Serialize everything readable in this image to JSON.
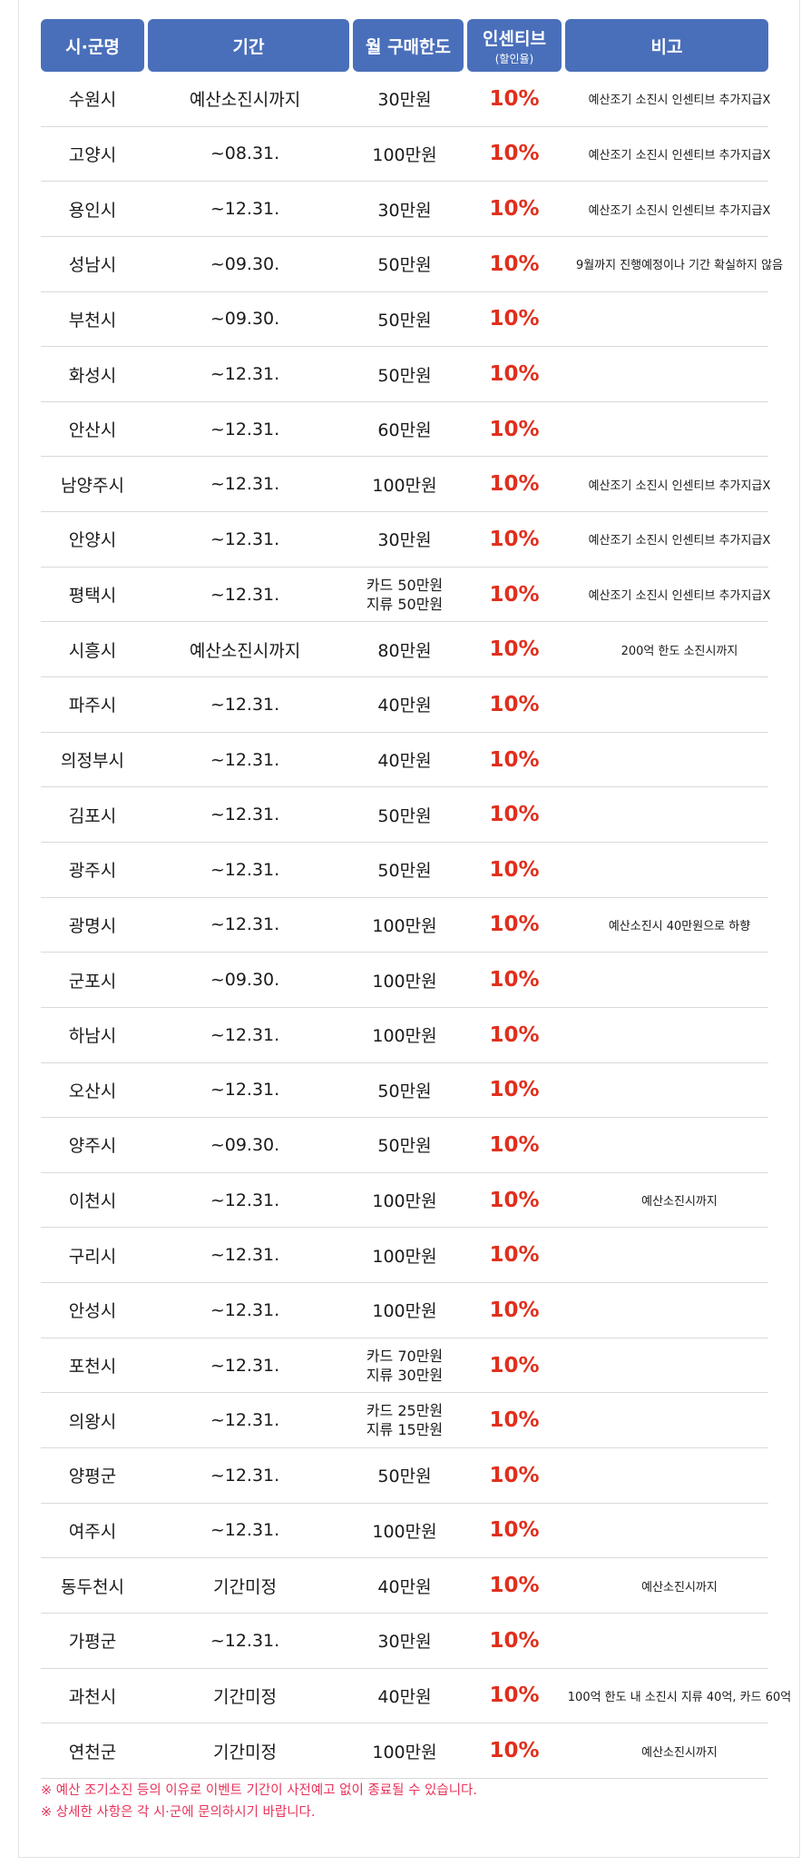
{
  "headers": {
    "city": "시·군명",
    "period": "기간",
    "limit": "월 구매한도",
    "incentive": "인센티브",
    "incentive_sub": "(할인율)",
    "note": "비고"
  },
  "colors": {
    "header_bg": "#4a6fba",
    "incentive_text": "#e0301e",
    "footnote_text": "#e8335a"
  },
  "rows": [
    {
      "city": "수원시",
      "period": "예산소진시까지",
      "limit": [
        "30만원"
      ],
      "incentive": "10%",
      "note": "예산조기 소진시 인센티브 추가지급X"
    },
    {
      "city": "고양시",
      "period": "~08.31.",
      "limit": [
        "100만원"
      ],
      "incentive": "10%",
      "note": "예산조기 소진시 인센티브 추가지급X"
    },
    {
      "city": "용인시",
      "period": "~12.31.",
      "limit": [
        "30만원"
      ],
      "incentive": "10%",
      "note": "예산조기 소진시 인센티브 추가지급X"
    },
    {
      "city": "성남시",
      "period": "~09.30.",
      "limit": [
        "50만원"
      ],
      "incentive": "10%",
      "note": "9월까지 진행예정이나 기간 확실하지 않음"
    },
    {
      "city": "부천시",
      "period": "~09.30.",
      "limit": [
        "50만원"
      ],
      "incentive": "10%",
      "note": ""
    },
    {
      "city": "화성시",
      "period": "~12.31.",
      "limit": [
        "50만원"
      ],
      "incentive": "10%",
      "note": ""
    },
    {
      "city": "안산시",
      "period": "~12.31.",
      "limit": [
        "60만원"
      ],
      "incentive": "10%",
      "note": ""
    },
    {
      "city": "남양주시",
      "period": "~12.31.",
      "limit": [
        "100만원"
      ],
      "incentive": "10%",
      "note": "예산조기 소진시 인센티브 추가지급X"
    },
    {
      "city": "안양시",
      "period": "~12.31.",
      "limit": [
        "30만원"
      ],
      "incentive": "10%",
      "note": "예산조기 소진시 인센티브 추가지급X"
    },
    {
      "city": "평택시",
      "period": "~12.31.",
      "limit": [
        "카드 50만원",
        "지류 50만원"
      ],
      "incentive": "10%",
      "note": "예산조기 소진시 인센티브 추가지급X"
    },
    {
      "city": "시흥시",
      "period": "예산소진시까지",
      "limit": [
        "80만원"
      ],
      "incentive": "10%",
      "note": "200억 한도 소진시까지"
    },
    {
      "city": "파주시",
      "period": "~12.31.",
      "limit": [
        "40만원"
      ],
      "incentive": "10%",
      "note": ""
    },
    {
      "city": "의정부시",
      "period": "~12.31.",
      "limit": [
        "40만원"
      ],
      "incentive": "10%",
      "note": ""
    },
    {
      "city": "김포시",
      "period": "~12.31.",
      "limit": [
        "50만원"
      ],
      "incentive": "10%",
      "note": ""
    },
    {
      "city": "광주시",
      "period": "~12.31.",
      "limit": [
        "50만원"
      ],
      "incentive": "10%",
      "note": ""
    },
    {
      "city": "광명시",
      "period": "~12.31.",
      "limit": [
        "100만원"
      ],
      "incentive": "10%",
      "note": "예산소진시 40만원으로 하향"
    },
    {
      "city": "군포시",
      "period": "~09.30.",
      "limit": [
        "100만원"
      ],
      "incentive": "10%",
      "note": ""
    },
    {
      "city": "하남시",
      "period": "~12.31.",
      "limit": [
        "100만원"
      ],
      "incentive": "10%",
      "note": ""
    },
    {
      "city": "오산시",
      "period": "~12.31.",
      "limit": [
        "50만원"
      ],
      "incentive": "10%",
      "note": ""
    },
    {
      "city": "양주시",
      "period": "~09.30.",
      "limit": [
        "50만원"
      ],
      "incentive": "10%",
      "note": ""
    },
    {
      "city": "이천시",
      "period": "~12.31.",
      "limit": [
        "100만원"
      ],
      "incentive": "10%",
      "note": "예산소진시까지"
    },
    {
      "city": "구리시",
      "period": "~12.31.",
      "limit": [
        "100만원"
      ],
      "incentive": "10%",
      "note": ""
    },
    {
      "city": "안성시",
      "period": "~12.31.",
      "limit": [
        "100만원"
      ],
      "incentive": "10%",
      "note": ""
    },
    {
      "city": "포천시",
      "period": "~12.31.",
      "limit": [
        "카드 70만원",
        "지류 30만원"
      ],
      "incentive": "10%",
      "note": ""
    },
    {
      "city": "의왕시",
      "period": "~12.31.",
      "limit": [
        "카드 25만원",
        "지류 15만원"
      ],
      "incentive": "10%",
      "note": ""
    },
    {
      "city": "양평군",
      "period": "~12.31.",
      "limit": [
        "50만원"
      ],
      "incentive": "10%",
      "note": ""
    },
    {
      "city": "여주시",
      "period": "~12.31.",
      "limit": [
        "100만원"
      ],
      "incentive": "10%",
      "note": ""
    },
    {
      "city": "동두천시",
      "period": "기간미정",
      "limit": [
        "40만원"
      ],
      "incentive": "10%",
      "note": "예산소진시까지"
    },
    {
      "city": "가평군",
      "period": "~12.31.",
      "limit": [
        "30만원"
      ],
      "incentive": "10%",
      "note": ""
    },
    {
      "city": "과천시",
      "period": "기간미정",
      "limit": [
        "40만원"
      ],
      "incentive": "10%",
      "note": "100억 한도 내 소진시 지류 40억, 카드 60억"
    },
    {
      "city": "연천군",
      "period": "기간미정",
      "limit": [
        "100만원"
      ],
      "incentive": "10%",
      "note": "예산소진시까지"
    }
  ],
  "footnotes": [
    "※ 예산 조기소진 등의 이유로 이벤트 기간이 사전예고 없이 종료될 수 있습니다.",
    "※ 상세한 사항은 각 시·군에 문의하시기 바랍니다."
  ]
}
